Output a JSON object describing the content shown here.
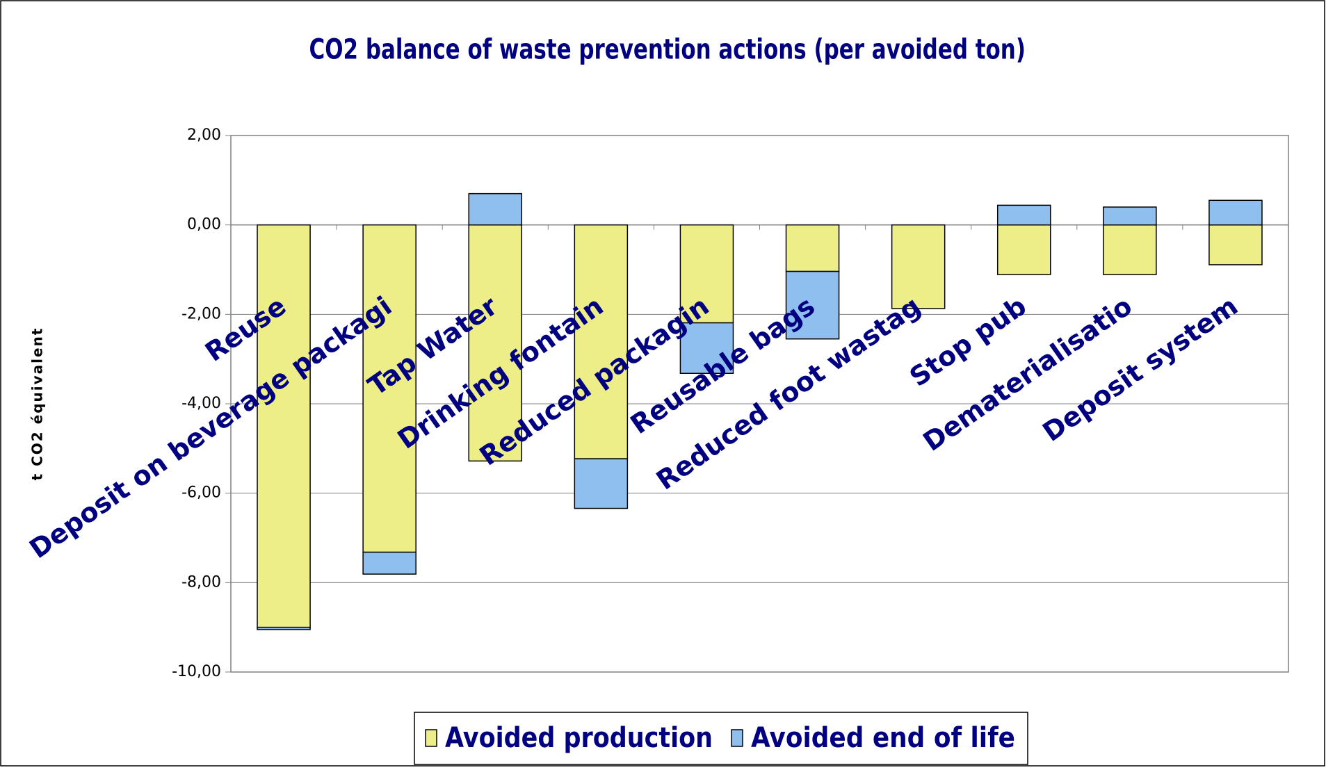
{
  "chart_data": {
    "type": "stacked-bar",
    "title": "CO2 balance of waste prevention actions (per avoided ton)",
    "y_label": "t CO2 équivalent",
    "categories": [
      "Reuse",
      "Deposit on beverage packagi",
      "Tap Water",
      "Drinking fontain",
      "Reduced packagin",
      "Reusable bags",
      "Reduced foot wastag",
      "Stop pub",
      "Dematerialisatio",
      "Deposit system"
    ],
    "series": [
      {
        "name": "Avoided production",
        "color": "#eeee88",
        "values": [
          -9.0,
          -7.32,
          -5.28,
          -5.23,
          -2.19,
          -1.04,
          -1.87,
          -1.11,
          -1.11,
          -0.89
        ]
      },
      {
        "name": "Avoided end of life",
        "color": "#8fbfef",
        "values": [
          -0.05,
          -0.49,
          0.7,
          -1.11,
          -1.13,
          -1.51,
          0,
          0.44,
          0.4,
          0.55
        ]
      }
    ],
    "ylim": [
      -10,
      2
    ],
    "yticks": [
      {
        "value": -10,
        "label": "-10,00"
      },
      {
        "value": -8,
        "label": "-8,00"
      },
      {
        "value": -6,
        "label": "-6,00"
      },
      {
        "value": -4,
        "label": "-4,00"
      },
      {
        "value": -2,
        "label": "-2,00"
      },
      {
        "value": 0,
        "label": "0,00"
      },
      {
        "value": 2,
        "label": "2,00"
      }
    ],
    "grid": true,
    "legend": "bottom"
  }
}
